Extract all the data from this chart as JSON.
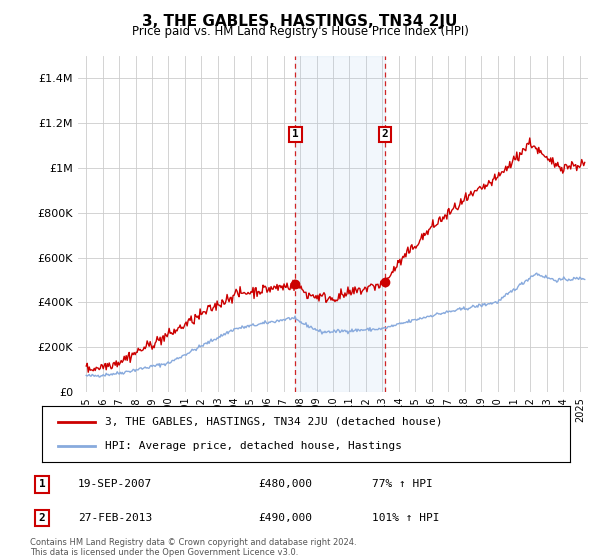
{
  "title": "3, THE GABLES, HASTINGS, TN34 2JU",
  "subtitle": "Price paid vs. HM Land Registry's House Price Index (HPI)",
  "ylim": [
    0,
    1500000
  ],
  "xlim_start": 1994.5,
  "xlim_end": 2025.5,
  "transaction1": {
    "date_x": 2007.72,
    "price": 480000,
    "label": "1",
    "pct": "77%",
    "date_str": "19-SEP-2007"
  },
  "transaction2": {
    "date_x": 2013.15,
    "price": 490000,
    "label": "2",
    "pct": "101%",
    "date_str": "27-FEB-2013"
  },
  "shade_x1": 2007.72,
  "shade_x2": 2013.15,
  "property_color": "#cc0000",
  "hpi_color": "#88aadd",
  "marker_box_color": "#cc0000",
  "background_color": "#ffffff",
  "legend_label_property": "3, THE GABLES, HASTINGS, TN34 2JU (detached house)",
  "legend_label_hpi": "HPI: Average price, detached house, Hastings",
  "footer": "Contains HM Land Registry data © Crown copyright and database right 2024.\nThis data is licensed under the Open Government Licence v3.0.",
  "table_rows": [
    {
      "label": "1",
      "date": "19-SEP-2007",
      "price": "£480,000",
      "pct": "77% ↑ HPI"
    },
    {
      "label": "2",
      "date": "27-FEB-2013",
      "price": "£490,000",
      "pct": "101% ↑ HPI"
    }
  ]
}
